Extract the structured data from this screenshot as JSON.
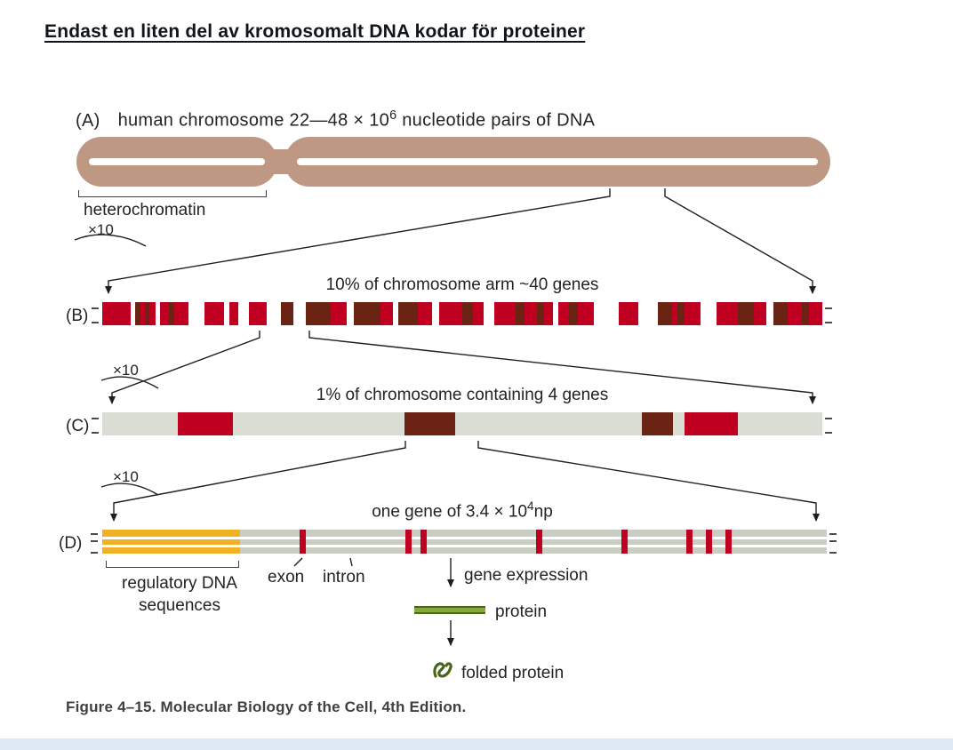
{
  "colors": {
    "chromosome": "#bf9884",
    "red": "#c00021",
    "dark": "#6b2413",
    "white": "#ffffff",
    "lightgray": "#d9ddd3",
    "dgray": "#c9cdc2",
    "orange": "#f0b124",
    "green_fill": "#85a93f",
    "green_dark": "#48671b",
    "footer_strip": "#dfe9f4"
  },
  "header": {
    "title": "Endast en liten del av kromosomalt DNA kodar för proteiner"
  },
  "panel_a": {
    "label": "(A)",
    "title_pre": "human chromosome 22—48 × 10",
    "title_sup": "6",
    "title_post": " nucleotide pairs of DNA",
    "heterochromatin": "heterochromatin",
    "zoom": "×10"
  },
  "panel_b": {
    "label": "(B)",
    "title": "10% of chromosome arm ~40 genes",
    "zoom": "×10",
    "segments": [
      [
        "red",
        32
      ],
      [
        "white",
        5
      ],
      [
        "dark",
        6
      ],
      [
        "red",
        5
      ],
      [
        "dark",
        5
      ],
      [
        "red",
        7
      ],
      [
        "white",
        5
      ],
      [
        "red",
        10
      ],
      [
        "dark",
        6
      ],
      [
        "red",
        9
      ],
      [
        "red",
        7
      ],
      [
        "white",
        18
      ],
      [
        "red",
        22
      ],
      [
        "white",
        6
      ],
      [
        "red",
        10
      ],
      [
        "white",
        12
      ],
      [
        "red",
        20
      ],
      [
        "white",
        16
      ],
      [
        "dark",
        14
      ],
      [
        "white",
        14
      ],
      [
        "dark",
        28
      ],
      [
        "red",
        18
      ],
      [
        "white",
        8
      ],
      [
        "dark",
        30
      ],
      [
        "red",
        14
      ],
      [
        "white",
        6
      ],
      [
        "dark",
        22
      ],
      [
        "red",
        16
      ],
      [
        "white",
        8
      ],
      [
        "red",
        26
      ],
      [
        "dark",
        12
      ],
      [
        "red",
        12
      ],
      [
        "white",
        12
      ],
      [
        "red",
        24
      ],
      [
        "dark",
        10
      ],
      [
        "red",
        14
      ],
      [
        "dark",
        8
      ],
      [
        "red",
        10
      ],
      [
        "white",
        6
      ],
      [
        "red",
        12
      ],
      [
        "dark",
        10
      ],
      [
        "red",
        18
      ],
      [
        "white",
        28
      ],
      [
        "red",
        22
      ],
      [
        "white",
        22
      ],
      [
        "dark",
        16
      ],
      [
        "red",
        6
      ],
      [
        "dark",
        8
      ],
      [
        "red",
        18
      ],
      [
        "white",
        18
      ],
      [
        "red",
        24
      ],
      [
        "dark",
        18
      ],
      [
        "red",
        14
      ],
      [
        "white",
        8
      ],
      [
        "dark",
        16
      ],
      [
        "red",
        16
      ],
      [
        "dark",
        8
      ],
      [
        "red",
        15
      ]
    ]
  },
  "panel_c": {
    "label": "(C)",
    "title": "1% of chromosome containing 4 genes",
    "zoom": "×10",
    "blocks": [
      [
        85,
        62,
        "red"
      ],
      [
        340,
        57,
        "dark"
      ],
      [
        607,
        35,
        "dark"
      ],
      [
        655,
        60,
        "red"
      ]
    ]
  },
  "panel_d": {
    "label": "(D)",
    "title_pre": "one gene of 3.4 × 10",
    "title_sup": "4",
    "title_post": "np",
    "regulatory_width": 155,
    "exon_ticks": [
      222,
      341,
      358,
      488,
      584,
      657,
      679,
      701
    ],
    "labels": {
      "regulatory_1": "regulatory DNA",
      "regulatory_2": "sequences",
      "exon": "exon",
      "intron": "intron",
      "gene_expression": "gene expression",
      "protein": "protein",
      "folded_protein": "folded protein"
    }
  },
  "caption": "Figure 4–15. Molecular Biology of the Cell, 4th Edition."
}
